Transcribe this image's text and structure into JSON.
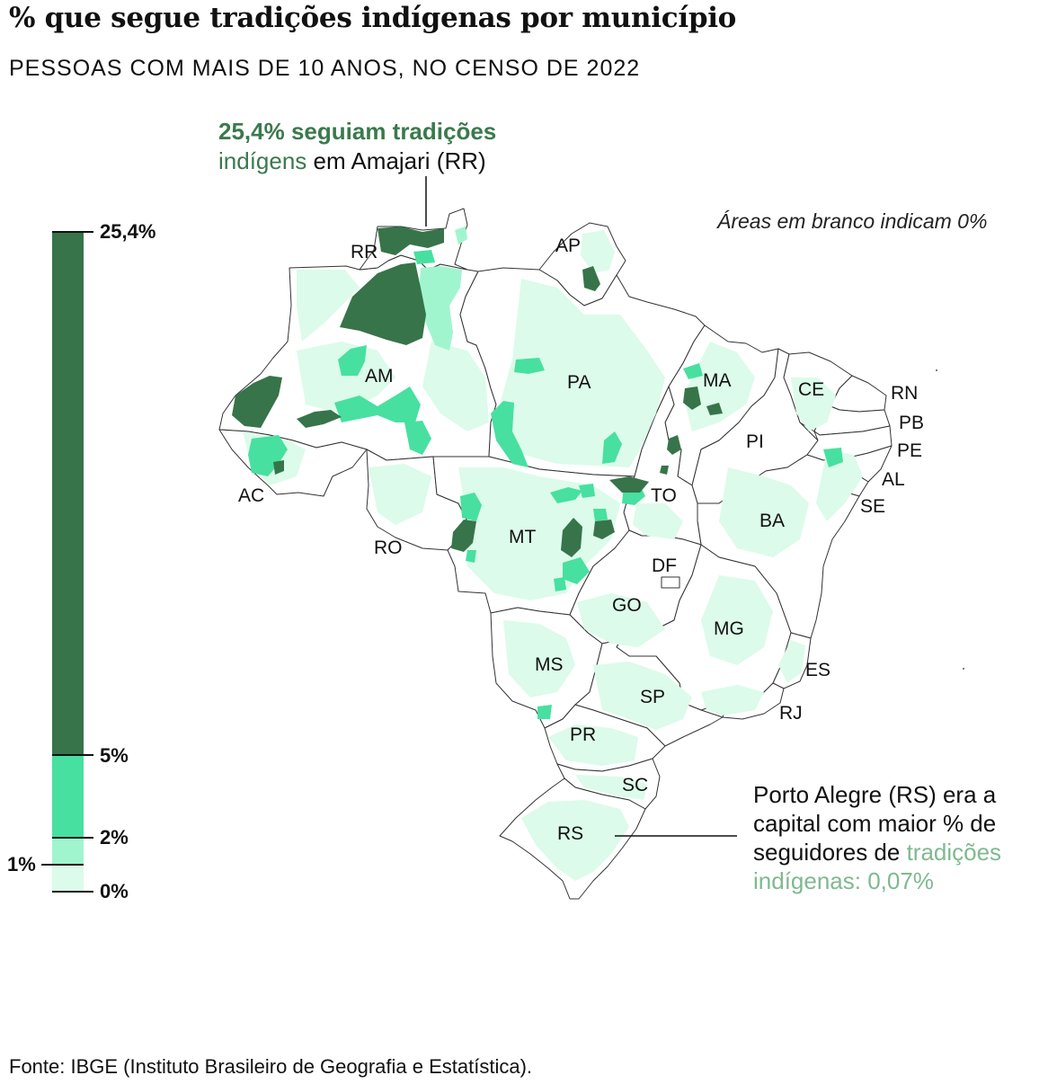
{
  "title": "% que segue tradições indígenas por município",
  "subtitle": "PESSOAS COM MAIS DE 10 ANOS, NO CENSO DE 2022",
  "annotations": {
    "top_highlight_1": "25,4% seguiam tradições",
    "top_highlight_2": "indígens",
    "top_plain": " em Amajari (RR)",
    "blank_areas": "Áreas em branco indicam 0%",
    "bottom_plain_1": "Porto Alegre (RS) era a",
    "bottom_plain_2": "capital com maior % de",
    "bottom_plain_3": "seguidores de ",
    "bottom_highlight_1": "tradições",
    "bottom_highlight_2": "indígenas: 0,07%"
  },
  "legend": {
    "ticks": [
      "25,4%",
      "5%",
      "2%",
      "1%",
      "0%"
    ],
    "bins": [
      {
        "from": 5,
        "to": 25.4,
        "color": "#37744a"
      },
      {
        "from": 2,
        "to": 5,
        "color": "#47e0a0"
      },
      {
        "from": 1,
        "to": 2,
        "color": "#a0f5cf"
      },
      {
        "from": 0,
        "to": 1,
        "color": "#dcfbea"
      }
    ]
  },
  "colors": {
    "dark": "#37744a",
    "mid": "#47e0a0",
    "light": "#a0f5cf",
    "pale": "#dcfbea",
    "border": "#333333",
    "accent_text": "#3a7a4d",
    "accent_text_light": "#7fb990"
  },
  "states": {
    "RR": "RR",
    "AP": "AP",
    "AM": "AM",
    "PA": "PA",
    "MA": "MA",
    "CE": "CE",
    "RN": "RN",
    "PB": "PB",
    "PE": "PE",
    "PI": "PI",
    "AL": "AL",
    "SE": "SE",
    "AC": "AC",
    "TO": "TO",
    "BA": "BA",
    "RO": "RO",
    "MT": "MT",
    "DF": "DF",
    "GO": "GO",
    "MG": "MG",
    "ES": "ES",
    "MS": "MS",
    "SP": "SP",
    "RJ": "RJ",
    "PR": "PR",
    "SC": "SC",
    "RS": "RS"
  },
  "source": "Fonte: IBGE (Instituto Brasileiro de Geografia e Estatística)."
}
